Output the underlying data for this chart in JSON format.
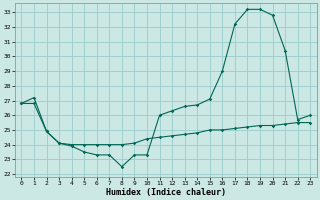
{
  "xlabel": "Humidex (Indice chaleur)",
  "bg_color": "#cce8e4",
  "grid_color": "#99cccc",
  "line_color": "#006655",
  "xlim": [
    -0.5,
    23.5
  ],
  "ylim": [
    21.8,
    33.6
  ],
  "yticks": [
    22,
    23,
    24,
    25,
    26,
    27,
    28,
    29,
    30,
    31,
    32,
    33
  ],
  "xticks": [
    0,
    1,
    2,
    3,
    4,
    5,
    6,
    7,
    8,
    9,
    10,
    11,
    12,
    13,
    14,
    15,
    16,
    17,
    18,
    19,
    20,
    21,
    22,
    23
  ],
  "series1_x": [
    0,
    1,
    2,
    3,
    4,
    5,
    6,
    7,
    8,
    9,
    10,
    11,
    12,
    13,
    14,
    15,
    16,
    17,
    18,
    19,
    20,
    21,
    22,
    23
  ],
  "series1_y": [
    26.8,
    27.2,
    24.9,
    24.1,
    23.9,
    23.5,
    23.3,
    23.3,
    22.5,
    23.3,
    23.3,
    26.0,
    26.3,
    26.6,
    26.7,
    27.1,
    29.0,
    32.2,
    33.2,
    33.2,
    32.8,
    30.4,
    25.7,
    26.0
  ],
  "series2_x": [
    0,
    1,
    2,
    3,
    4,
    5,
    6,
    7,
    8,
    9,
    10,
    11,
    12,
    13,
    14,
    15,
    16,
    17,
    18,
    19,
    20,
    21,
    22,
    23
  ],
  "series2_y": [
    26.8,
    26.8,
    24.9,
    24.1,
    24.0,
    24.0,
    24.0,
    24.0,
    24.0,
    24.1,
    24.4,
    24.5,
    24.6,
    24.7,
    24.8,
    25.0,
    25.0,
    25.1,
    25.2,
    25.3,
    25.3,
    25.4,
    25.5,
    25.5
  ]
}
